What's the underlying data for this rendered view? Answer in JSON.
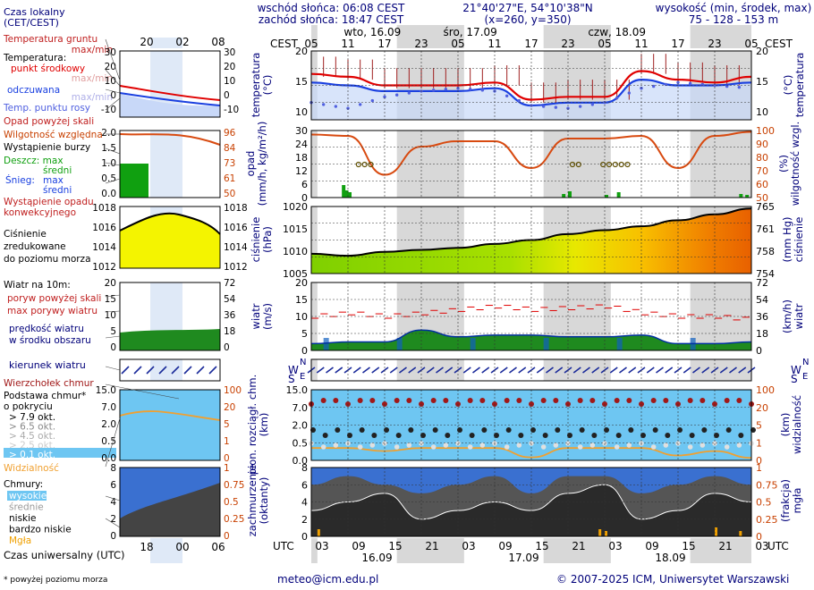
{
  "header": {
    "sunrise": "wschód słońca: 06:08 CEST",
    "sunset": "zachód słońca: 18:47 CEST",
    "coords": "21°40'27\"E, 54°10'38\"N",
    "grid": "(x=260, y=350)",
    "height_title": "wysokość (min, środek, max)",
    "height_values": "75 - 128 - 153 m"
  },
  "top_axis": {
    "tz": "CEST",
    "days": [
      "wto, 16.09",
      "śro, 17.09",
      "czw, 18.09"
    ],
    "hours": [
      "05",
      "11",
      "17",
      "23",
      "05",
      "11",
      "17",
      "23",
      "05",
      "11",
      "17",
      "23",
      "05"
    ]
  },
  "bottom_axis": {
    "tz": "UTC",
    "hours": [
      "03",
      "09",
      "15",
      "21",
      "03",
      "09",
      "15",
      "21",
      "03",
      "09",
      "15",
      "21",
      "03"
    ],
    "dates": [
      "16.09",
      "17.09",
      "18.09"
    ]
  },
  "legend": {
    "local_time": [
      "Czas lokalny",
      "(CET/CEST)"
    ],
    "local_hours": [
      "20",
      "02",
      "08"
    ],
    "utc_hours": [
      "18",
      "00",
      "06"
    ],
    "temperature": {
      "ground": "Temperatura gruntu",
      "maxmin": "max/min",
      "temp": "Temperatura:",
      "mid": "punkt środkowy",
      "maxmin2": "max/min",
      "feel": "odczuwana",
      "maxmin3": "max/min",
      "dew": "Temp. punktu rosy",
      "ticks": [
        "30",
        "20",
        "10",
        "0",
        "-10"
      ]
    },
    "precip": {
      "over": "Opad powyżej skali",
      "humidity": "Wilgotność względna",
      "storm": "Wystąpienie burzy",
      "rain": "Deszcz: max",
      "rain_mid": "średni",
      "snow": "Śnieg:",
      "snow_max": "max",
      "snow_mid": "średni",
      "occur": [
        "Wystąpienie opadu",
        "konwekcyjnego"
      ],
      "left_ticks": [
        "2.0",
        "1.5",
        "1.0",
        "0.5",
        "0.0"
      ],
      "right_ticks": [
        "96",
        "84",
        "73",
        "61",
        "50"
      ]
    },
    "pressure": {
      "label": [
        "Ciśnienie",
        "zredukowane",
        "do poziomu morza"
      ],
      "left_ticks": [
        "1018",
        "1016",
        "1014",
        "1012"
      ],
      "right_ticks": [
        "1018",
        "1016",
        "1014",
        "1012"
      ]
    },
    "wind": {
      "title": "Wiatr na 10m:",
      "over": "poryw powyżej skali",
      "gust": "max porywy wiatru",
      "speed": [
        "prędkość wiatru",
        "w środku obszaru"
      ],
      "left_ticks": [
        "20",
        "15",
        "10",
        "5",
        "0"
      ],
      "right_ticks": [
        "72",
        "54",
        "36",
        "18",
        "0"
      ]
    },
    "direction": {
      "label": "kierunek wiatru",
      "compass": [
        "N",
        "W",
        "S",
        "E"
      ]
    },
    "clouds": {
      "top": "Wierzchołek chmur",
      "base": [
        "Podstawa chmur*",
        "o pokryciu"
      ],
      "levels": [
        "> 7.9 okt.",
        "> 6.5 okt.",
        "> 4.5 okt.",
        "> 2.5 okt.",
        "> 0.1 okt."
      ],
      "visibility": "Widzialność",
      "left_ticks": [
        "15.0",
        "7.0",
        "2.0",
        "0.5",
        "0.0"
      ],
      "right_ticks": [
        "100",
        "20",
        "5",
        "1",
        "0"
      ]
    },
    "cover": {
      "title": "Chmury:",
      "items": [
        "wysokie",
        "średnie",
        "niskie",
        "bardzo niskie",
        "Mgła"
      ],
      "left_ticks": [
        "8",
        "6",
        "4",
        "2",
        "0"
      ],
      "right_ticks": [
        "1",
        "0.75",
        "0.5",
        "0.25",
        "0"
      ]
    },
    "utc_label": "Czas uniwersalny (UTC)",
    "footnote": "* powyżej poziomu morza"
  },
  "panels": {
    "temperature": {
      "left": [
        "temperatura",
        "(°C)"
      ],
      "right": [
        "(°C)",
        "temperatura"
      ],
      "ticks": [
        "20",
        "15",
        "10"
      ]
    },
    "precip": {
      "left": [
        "opad",
        "(mm/h, kg/m²/h)"
      ],
      "right": [
        "(%)",
        "wilgotność wzgl."
      ],
      "left_ticks": [
        "30",
        "27",
        "24",
        "21",
        "18",
        "15",
        "12",
        "9",
        "6",
        "3",
        "0"
      ],
      "right_ticks": [
        "100",
        "90",
        "80",
        "70",
        "60",
        "50"
      ]
    },
    "pressure": {
      "left": [
        "ciśnienie",
        "(hPa)"
      ],
      "right": [
        "(mm Hg)",
        "ciśnienie"
      ],
      "left_ticks": [
        "1020",
        "1015",
        "1010",
        "1005"
      ],
      "right_ticks": [
        "765",
        "761",
        "758",
        "754"
      ]
    },
    "wind": {
      "left": [
        "wiatr",
        "(m/s)"
      ],
      "right": [
        "(km/h)",
        "wiatr"
      ],
      "left_ticks": [
        "20",
        "15",
        "10",
        "5",
        "0"
      ],
      "right_ticks": [
        "72",
        "54",
        "36",
        "18",
        "0"
      ]
    },
    "clouds": {
      "left": [
        "pion. rozciągł. chm.",
        "(km)"
      ],
      "right": [
        "(km)",
        "widzialność"
      ],
      "left_ticks": [
        "15.0",
        "7.0",
        "2.0",
        "0.5",
        "0.0"
      ],
      "right_ticks": [
        "100",
        "20",
        "5",
        "1",
        "0"
      ]
    },
    "cover": {
      "left": [
        "zachmurzenie",
        "(oktanty)"
      ],
      "right": [
        "(frakcja)",
        "mgła"
      ],
      "left_ticks": [
        "8",
        "6",
        "4",
        "2",
        "0"
      ],
      "right_ticks": [
        "1",
        "0.75",
        "0.5",
        "0.25",
        "0"
      ]
    }
  },
  "footer": {
    "email": "meteo@icm.edu.pl",
    "copyright": "© 2007-2025 ICM, Uniwersytet Warszawski"
  },
  "colors": {
    "text": "#00007a",
    "right_axis": "#c84000",
    "temp_mid": "#e00000",
    "feel": "#1a40e0",
    "gust": "#e00000",
    "wind_fill": "#1f8a1f",
    "cloud_bg": "#6ec6f2",
    "visibility": "#f0a030",
    "fog": "#f0a000"
  },
  "chart_data": [
    {
      "type": "line",
      "name": "temperature",
      "x": [
        "16.09 05",
        "16.09 11",
        "16.09 17",
        "16.09 23",
        "17.09 05",
        "17.09 11",
        "17.09 17",
        "17.09 23",
        "18.09 05",
        "18.09 11",
        "18.09 17",
        "18.09 23",
        "19.09 05"
      ],
      "ylim": [
        8,
        20
      ],
      "series": [
        {
          "name": "punkt środkowy",
          "values": [
            16,
            15.5,
            14,
            14,
            14,
            14.5,
            11.5,
            12,
            12,
            16.5,
            15,
            14.5,
            15.5
          ]
        },
        {
          "name": "odczuwana",
          "values": [
            14.5,
            14,
            13,
            13,
            13,
            13.5,
            10.5,
            11,
            11,
            15,
            14,
            14,
            14.5
          ]
        },
        {
          "name": "Temp. punktu rosy",
          "values": [
            11,
            10,
            12,
            13,
            13.5,
            13,
            10.5,
            10,
            11,
            13.5,
            14.5,
            14,
            13.5
          ]
        }
      ]
    },
    {
      "type": "line",
      "name": "humidity",
      "ylim": [
        50,
        100
      ],
      "values": [
        97,
        96,
        67,
        88,
        92,
        92,
        72,
        94,
        94,
        96,
        72,
        96,
        99
      ]
    },
    {
      "type": "area",
      "name": "pressure",
      "ylim": [
        1005,
        1022
      ],
      "values": [
        1010,
        1009.5,
        1010.5,
        1011,
        1011.5,
        1012.5,
        1013.5,
        1015,
        1016,
        1017,
        1018.5,
        1020,
        1021.5
      ]
    },
    {
      "type": "area",
      "name": "wind",
      "ylim": [
        0,
        20
      ],
      "series": [
        {
          "name": "prędkość wiatru",
          "values": [
            2,
            2.5,
            2.5,
            6,
            4,
            4.5,
            4.5,
            4,
            4,
            4.5,
            2,
            2,
            2.5
          ]
        },
        {
          "name": "max porywy wiatru",
          "values": [
            10,
            11,
            10,
            11,
            12,
            13,
            12,
            12.5,
            13,
            11,
            10,
            10,
            9
          ]
        }
      ]
    },
    {
      "type": "line",
      "name": "visibility",
      "ylim": [
        0,
        100
      ],
      "values": [
        20,
        20,
        15,
        20,
        20,
        20,
        5,
        20,
        20,
        20,
        8,
        15,
        4
      ]
    },
    {
      "type": "area",
      "name": "cloud cover",
      "ylim": [
        0,
        8
      ],
      "series": [
        {
          "name": "niskie",
          "values": [
            3,
            4,
            5,
            2,
            3,
            4,
            3,
            5,
            6,
            2,
            3,
            5,
            4
          ]
        },
        {
          "name": "średnie",
          "values": [
            6,
            7,
            6,
            5,
            6,
            7,
            5,
            7,
            7,
            5,
            6,
            7,
            6
          ]
        }
      ]
    }
  ]
}
